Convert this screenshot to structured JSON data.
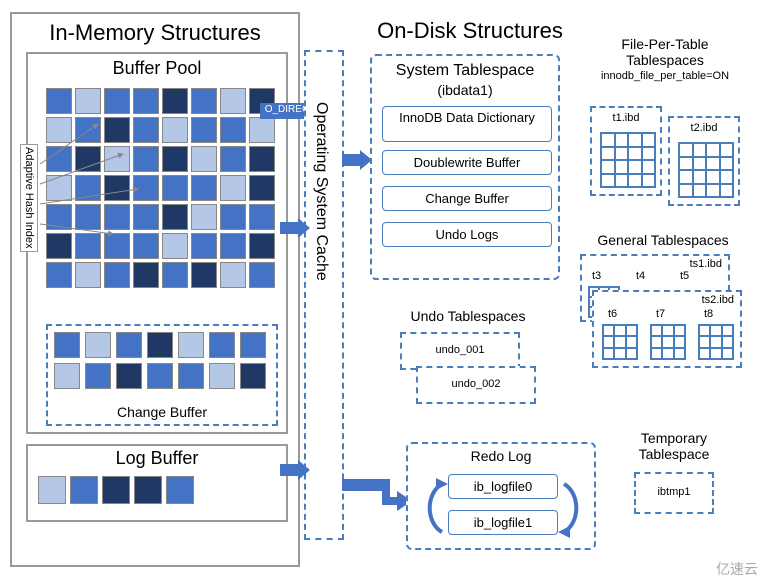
{
  "colors": {
    "dashed_border": "#4a7ebb",
    "solid_border": "#999999",
    "cell_dark": "#1f3864",
    "cell_med": "#4472c4",
    "cell_light": "#b4c7e7",
    "arrow_fill": "#4472c4",
    "background": "#ffffff"
  },
  "in_memory": {
    "title": "In-Memory Structures",
    "buffer_pool": {
      "title": "Buffer Pool",
      "grid": {
        "rows": 7,
        "cols": 8,
        "cell_size": 26,
        "gap": 3
      },
      "adaptive_hash": "Adaptive Hash Index",
      "change_buffer": "Change Buffer"
    },
    "log_buffer": {
      "title": "Log Buffer",
      "cells": 5
    }
  },
  "os_cache": {
    "title": "Operating System Cache",
    "o_direct": "O_DIRECT"
  },
  "on_disk": {
    "title": "On-Disk Structures",
    "system_ts": {
      "title": "System Tablespace",
      "subtitle": "(ibdata1)",
      "items": [
        "InnoDB Data Dictionary",
        "Doublewrite Buffer",
        "Change Buffer",
        "Undo Logs"
      ]
    },
    "file_per_table": {
      "title": "File-Per-Table Tablespaces",
      "subtitle": "innodb_file_per_table=ON",
      "files": [
        "t1.ibd",
        "t2.ibd"
      ]
    },
    "general_ts": {
      "title": "General Tablespaces",
      "group1": {
        "file": "ts1.ibd",
        "tables": [
          "t3",
          "t4",
          "t5"
        ]
      },
      "group2": {
        "file": "ts2.ibd",
        "tables": [
          "t6",
          "t7",
          "t8"
        ]
      }
    },
    "undo_ts": {
      "title": "Undo Tablespaces",
      "files": [
        "undo_001",
        "undo_002"
      ]
    },
    "redo_log": {
      "title": "Redo Log",
      "files": [
        "ib_logfile0",
        "ib_logfile1"
      ]
    },
    "temp_ts": {
      "title": "Temporary Tablespace",
      "file": "ibtmp1"
    }
  },
  "watermark": "亿速云"
}
